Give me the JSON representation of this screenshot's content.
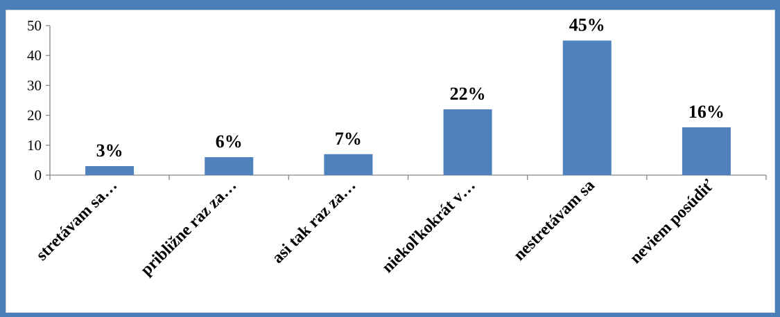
{
  "chart_data": {
    "type": "bar",
    "title": "",
    "xlabel": "",
    "ylabel": "",
    "categories": [
      "stretávam sa…",
      "približne raz za…",
      "asi tak raz za…",
      "niekoľkokrát v…",
      "nestretávam sa",
      "neviem posúdiť"
    ],
    "values": [
      3,
      6,
      7,
      22,
      45,
      16
    ],
    "data_labels": [
      "3%",
      "6%",
      "7%",
      "22%",
      "45%",
      "16%"
    ],
    "ylim": [
      0,
      50
    ],
    "yticks": [
      0,
      10,
      20,
      30,
      40,
      50
    ],
    "grid": false,
    "legend": "none",
    "colors": {
      "bar": "#4f81bd",
      "frame": "#4a7eb8",
      "axis": "#868686"
    }
  }
}
